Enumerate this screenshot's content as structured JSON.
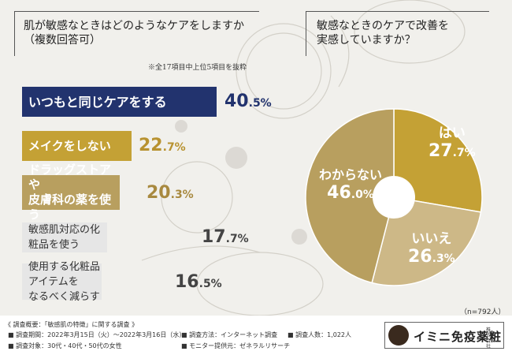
{
  "left_question": "肌が敏感なときはどのようなケアをしますか\n（複数回答可）",
  "left_note": "※全17項目中上位5項目を抜粋",
  "right_question": "敏感なときのケアで改善を\n実感していますか？",
  "sample_size": "（n=792人）",
  "colors": {
    "navy": "#22336e",
    "gold": "#c4a135",
    "tan": "#b89f5f",
    "light_tan": "#cdb887",
    "gray_bar": "#e6e6e6"
  },
  "bar_items": [
    {
      "label": "いつもと同じケアをする",
      "value_int": "40",
      "value_dec": ".5%",
      "value": 40.5
    },
    {
      "label": "メイクをしない",
      "value_int": "22",
      "value_dec": ".7%",
      "value": 22.7
    },
    {
      "label": "ドラッグストアや\n皮膚科の薬を使う",
      "value_int": "20",
      "value_dec": ".3%",
      "value": 20.3
    },
    {
      "label": "敏感肌対応の化粧品を使う",
      "value_int": "17",
      "value_dec": ".7%",
      "value": 17.7
    },
    {
      "label": "使用する化粧品アイテムを\nなるべく減らす",
      "value_int": "16",
      "value_dec": ".5%",
      "value": 16.5
    }
  ],
  "pie_labels": [
    {
      "name": "はい",
      "value_int": "27",
      "value_dec": ".7%"
    },
    {
      "name": "いいえ",
      "value_int": "26",
      "value_dec": ".3%"
    },
    {
      "name": "わからない",
      "value_int": "46",
      "value_dec": ".0%"
    }
  ],
  "chart_data": [
    {
      "type": "bar",
      "title": "肌が敏感なときはどのようなケアをしますか（複数回答可）",
      "categories": [
        "いつもと同じケアをする",
        "メイクをしない",
        "ドラッグストアや皮膚科の薬を使う",
        "敏感肌対応の化粧品を使う",
        "使用する化粧品アイテムをなるべく減らす"
      ],
      "values": [
        40.5,
        22.7,
        20.3,
        17.7,
        16.5
      ],
      "unit": "%"
    },
    {
      "type": "pie",
      "title": "敏感なときのケアで改善を実感していますか？",
      "categories": [
        "はい",
        "いいえ",
        "わからない"
      ],
      "values": [
        27.7,
        26.3,
        46.0
      ],
      "colors": [
        "#c4a135",
        "#cdb887",
        "#b89f5f"
      ],
      "unit": "%"
    }
  ],
  "footer": {
    "line1": "《 調査概要：「敏感肌の特徴」に関する調査 》",
    "period": "■ 調査期間：2022年3月15日（火）～2022年3月16日（水）",
    "method": "■ 調査方法：インターネット調査",
    "count": "■ 調査人数：1,022人",
    "target": "■ 調査対象：30代・40代・50代の女性",
    "provider": "■ モニター提供元：ゼネラルリサーチ"
  },
  "logo": {
    "name": "イミニ免疫薬粧",
    "sub": "株式会社"
  }
}
